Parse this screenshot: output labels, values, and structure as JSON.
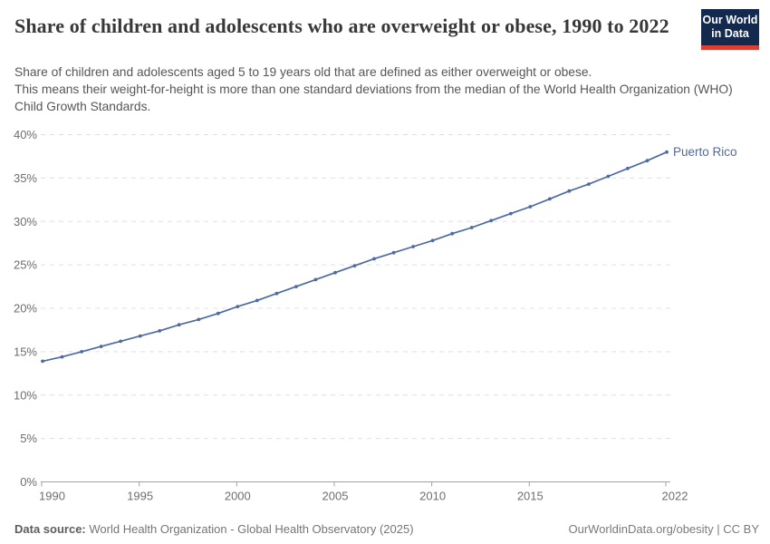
{
  "header": {
    "title": "Share of children and adolescents who are overweight or obese, 1990 to 2022",
    "logo": {
      "line1": "Our World",
      "line2": "in Data"
    }
  },
  "subtitle": {
    "paragraph1": "Share of children and adolescents aged 5 to 19 years old that are defined as either overweight or obese.",
    "paragraph2": "This means their weight-for-height is more than one standard deviations from the median of the World Health Organization (WHO) Child Growth Standards."
  },
  "chart_data": {
    "type": "line",
    "title": "Share of children and adolescents who are overweight or obese, 1990 to 2022",
    "x": [
      1990,
      1991,
      1992,
      1993,
      1994,
      1995,
      1996,
      1997,
      1998,
      1999,
      2000,
      2001,
      2002,
      2003,
      2004,
      2005,
      2006,
      2007,
      2008,
      2009,
      2010,
      2011,
      2012,
      2013,
      2014,
      2015,
      2016,
      2017,
      2018,
      2019,
      2020,
      2021,
      2022
    ],
    "series": [
      {
        "name": "Puerto Rico",
        "color": "#4d6aa4",
        "values": [
          13.9,
          14.4,
          15.0,
          15.6,
          16.2,
          16.8,
          17.4,
          18.1,
          18.7,
          19.4,
          20.2,
          20.9,
          21.7,
          22.5,
          23.3,
          24.1,
          24.9,
          25.7,
          26.4,
          27.1,
          27.8,
          28.6,
          29.3,
          30.1,
          30.9,
          31.7,
          32.6,
          33.5,
          34.3,
          35.2,
          36.1,
          37.0,
          38.0
        ]
      }
    ],
    "xlabel": "",
    "ylabel": "",
    "xlim": [
      1990,
      2022
    ],
    "ylim": [
      0,
      40
    ],
    "xticks": [
      1990,
      1995,
      2000,
      2005,
      2010,
      2015,
      2022
    ],
    "yticks": [
      0,
      5,
      10,
      15,
      20,
      25,
      30,
      35,
      40
    ],
    "ytick_suffix": "%",
    "grid": "horizontal-dashed",
    "legend": "end-of-line-label",
    "colors": {
      "gridline": "#e0e0e0",
      "axis": "#a1a1a1",
      "tick_label": "#6e6e6e"
    }
  },
  "footer": {
    "source_label": "Data source:",
    "source_text": "World Health Organization - Global Health Observatory (2025)",
    "credit": "OurWorldinData.org/obesity | CC BY"
  }
}
